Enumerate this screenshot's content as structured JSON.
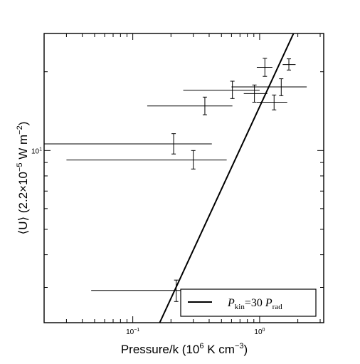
{
  "chart_data": {
    "type": "scatter",
    "xlabel": {
      "main": "Pressure/k (10",
      "sup": "6",
      "mid": " K cm",
      "sup2": "−3",
      "end": ")"
    },
    "ylabel": {
      "main": "⟨U⟩ (2.2×10",
      "sup": "−5",
      "mid": " W m",
      "sup2": "−2",
      "end": ")"
    },
    "x_scale": "log",
    "y_scale": "log",
    "xlim": [
      0.02,
      3.2
    ],
    "ylim": [
      2.2,
      28
    ],
    "x_ticks": [
      {
        "value": 0.1,
        "base": "10",
        "exp": "−1"
      },
      {
        "value": 1,
        "base": "10",
        "exp": "0"
      }
    ],
    "y_ticks": [
      {
        "value": 10,
        "base": "10",
        "exp": "1"
      }
    ],
    "points": [
      {
        "x": 0.22,
        "y": 2.92,
        "xlo": 0.047,
        "xhi": 0.42,
        "ylo": 2.65,
        "yhi": 3.2
      },
      {
        "x": 0.21,
        "y": 10.6,
        "xlo": 0.02,
        "xhi": 0.42,
        "ylo": 9.7,
        "yhi": 11.6
      },
      {
        "x": 0.3,
        "y": 9.2,
        "xlo": 0.03,
        "xhi": 0.55,
        "ylo": 8.5,
        "yhi": 10.0
      },
      {
        "x": 0.37,
        "y": 14.8,
        "xlo": 0.13,
        "xhi": 0.61,
        "ylo": 13.7,
        "yhi": 16.0
      },
      {
        "x": 0.61,
        "y": 17.0,
        "xlo": 0.25,
        "xhi": 1.0,
        "ylo": 15.8,
        "yhi": 18.4
      },
      {
        "x": 0.91,
        "y": 16.5,
        "xlo": 0.75,
        "xhi": 1.15,
        "ylo": 15.3,
        "yhi": 17.8
      },
      {
        "x": 1.1,
        "y": 20.8,
        "xlo": 0.95,
        "xhi": 1.26,
        "ylo": 19.2,
        "yhi": 22.5
      },
      {
        "x": 1.48,
        "y": 17.5,
        "xlo": 0.6,
        "xhi": 2.35,
        "ylo": 16.2,
        "yhi": 18.8
      },
      {
        "x": 1.3,
        "y": 15.3,
        "xlo": 0.95,
        "xhi": 1.65,
        "ylo": 14.3,
        "yhi": 16.3
      },
      {
        "x": 1.7,
        "y": 21.3,
        "xlo": 1.52,
        "xhi": 1.92,
        "ylo": 20.3,
        "yhi": 22.4
      }
    ],
    "model_line": {
      "x": [
        0.163,
        1.85
      ],
      "y": [
        2.2,
        28
      ]
    },
    "legend": {
      "placement": "bottom-right",
      "label": {
        "p1": "P",
        "s1": "kin",
        "mid": "=30 ",
        "p2": "P",
        "s2": "rad"
      }
    },
    "grid": false
  }
}
